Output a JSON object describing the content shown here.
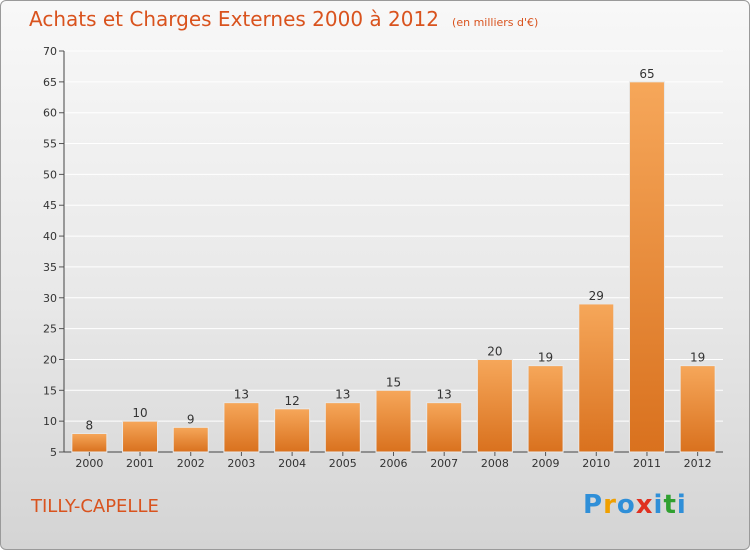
{
  "title": "Achats et Charges Externes 2000 à 2012",
  "unit": "(en milliers d'€)",
  "commune": "TILLY-CAPELLE",
  "logo": {
    "letters": [
      "P",
      "r",
      "o",
      "x",
      "i",
      "t",
      "i"
    ],
    "colors": [
      "#2f8fd8",
      "#f0a000",
      "#2f8fd8",
      "#e03020",
      "#2f8fd8",
      "#30a030",
      "#2f8fd8"
    ]
  },
  "colors": {
    "bar_light": "#f6a75a",
    "bar_dark": "#d9711e",
    "title": "#d9531e"
  },
  "chart_data": {
    "type": "bar",
    "title": "Achats et Charges Externes 2000 à 2012",
    "subtitle": "(en milliers d'€)",
    "categories": [
      "2000",
      "2001",
      "2002",
      "2003",
      "2004",
      "2005",
      "2006",
      "2007",
      "2008",
      "2009",
      "2010",
      "2011",
      "2012"
    ],
    "values": [
      8,
      10,
      9,
      13,
      12,
      13,
      15,
      13,
      20,
      19,
      29,
      65,
      19
    ],
    "ylim": [
      5,
      70
    ],
    "yticks": [
      5,
      10,
      15,
      20,
      25,
      30,
      35,
      40,
      45,
      50,
      55,
      60,
      65,
      70
    ],
    "grid": "horizontal"
  }
}
